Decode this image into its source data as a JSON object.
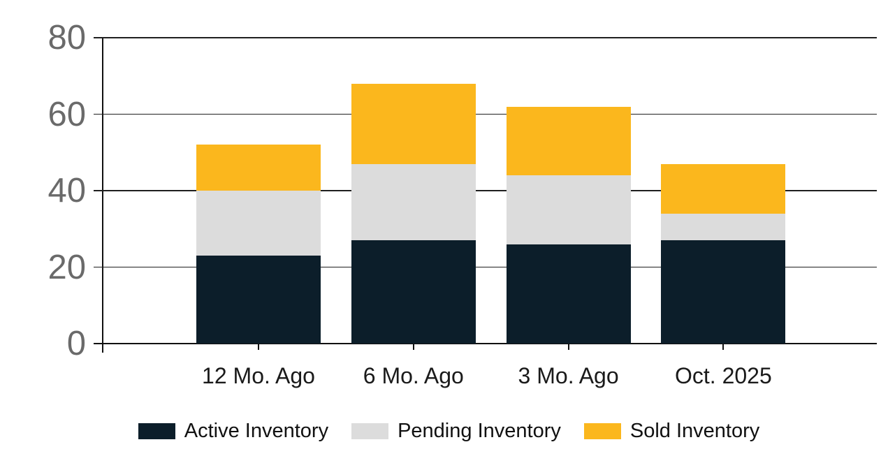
{
  "chart_data": {
    "type": "bar",
    "stacked": true,
    "title": "",
    "categories": [
      "12 Mo. Ago",
      "6 Mo. Ago",
      "3 Mo. Ago",
      "Oct. 2025"
    ],
    "series": [
      {
        "name": "Active Inventory",
        "color": "#0c1e2a",
        "values": [
          23,
          27,
          26,
          27
        ]
      },
      {
        "name": "Pending Inventory",
        "color": "#dcdcdc",
        "values": [
          17,
          20,
          18,
          7
        ]
      },
      {
        "name": "Sold Inventory",
        "color": "#fbb71d",
        "values": [
          12,
          21,
          18,
          13
        ]
      }
    ],
    "stack_totals": [
      52,
      68,
      62,
      47
    ],
    "y_axis": {
      "min": 0,
      "max": 80,
      "tick_values": [
        0,
        20,
        40,
        60,
        80
      ],
      "tick_labels": [
        "0",
        "20",
        "40",
        "60",
        "80"
      ]
    },
    "xlabel": "",
    "ylabel": "",
    "grid": true,
    "legend_position": "bottom"
  },
  "style_colors": {
    "background": "#ffffff",
    "grid_line": "#1f1f1f",
    "axis_line": "#111111",
    "y_tick_label_color": "#6a6a6a",
    "x_tick_label_color": "#1a1a1a",
    "legend_label_color": "#111111"
  }
}
